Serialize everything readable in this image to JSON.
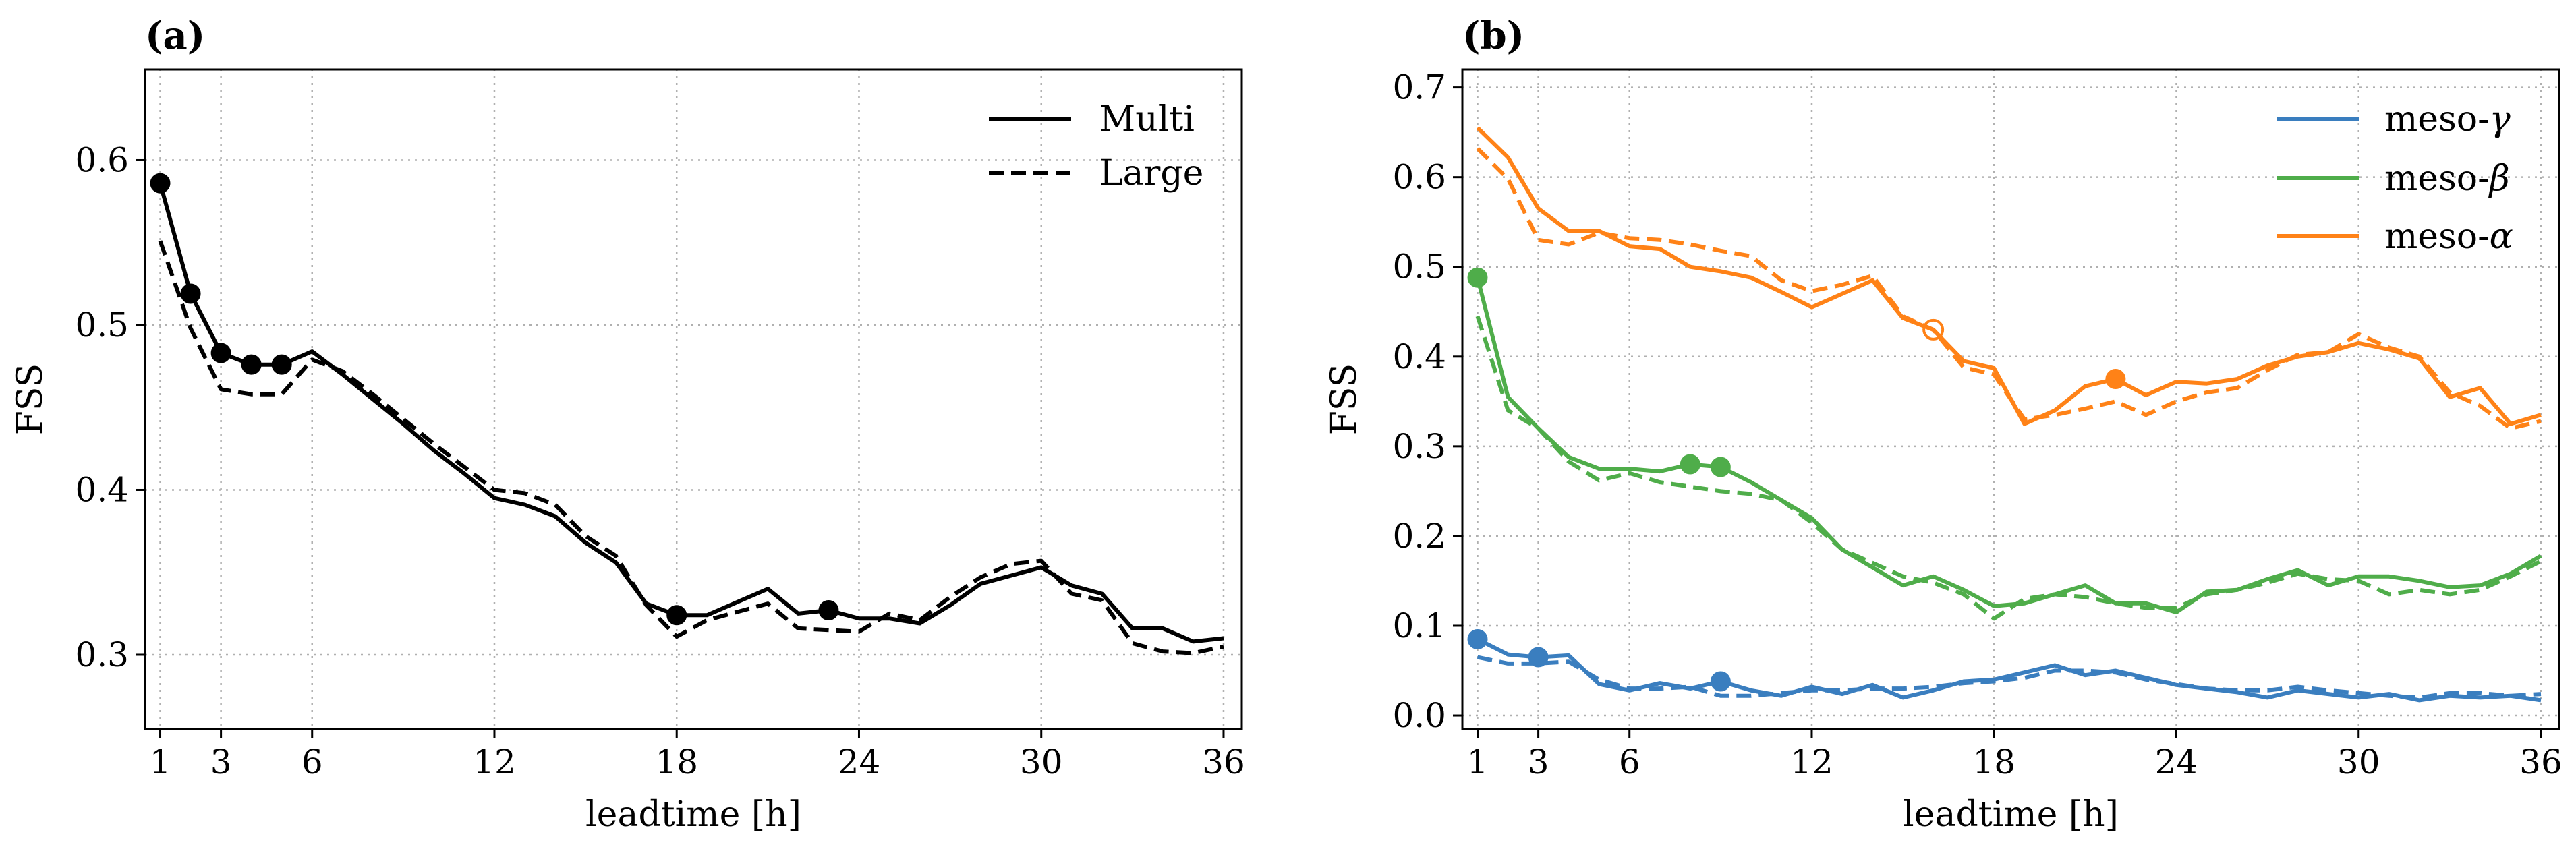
{
  "chart_data": [
    {
      "type": "line",
      "panel_label": "(a)",
      "title": "",
      "xlabel": "leadtime [h]",
      "ylabel": "FSS",
      "xlim": [
        0.5,
        36.6
      ],
      "ylim": [
        0.255,
        0.655
      ],
      "xticks": [
        1,
        3,
        6,
        12,
        18,
        24,
        30,
        36
      ],
      "xticklabels": [
        "1",
        "3",
        "6",
        "12",
        "18",
        "24",
        "30",
        "36"
      ],
      "yticks": [
        0.3,
        0.4,
        0.5,
        0.6
      ],
      "yticklabels": [
        "0.3",
        "0.4",
        "0.5",
        "0.6"
      ],
      "grid": true,
      "legend_position": "top-right",
      "x": [
        1,
        2,
        3,
        4,
        5,
        6,
        7,
        8,
        9,
        10,
        11,
        12,
        13,
        14,
        15,
        16,
        17,
        18,
        19,
        20,
        21,
        22,
        23,
        24,
        25,
        26,
        27,
        28,
        29,
        30,
        31,
        32,
        33,
        34,
        35,
        36
      ],
      "series": [
        {
          "name": "Multi",
          "color": "#000000",
          "dash": "solid",
          "values": [
            0.586,
            0.519,
            0.483,
            0.476,
            0.476,
            0.484,
            0.47,
            0.455,
            0.44,
            0.424,
            0.41,
            0.395,
            0.391,
            0.384,
            0.368,
            0.356,
            0.331,
            0.324,
            0.324,
            0.332,
            0.34,
            0.325,
            0.327,
            0.322,
            0.322,
            0.319,
            0.33,
            0.343,
            0.348,
            0.353,
            0.342,
            0.337,
            0.316,
            0.316,
            0.308,
            0.31
          ],
          "markers_at": [
            1,
            2,
            3,
            4,
            5,
            18,
            23
          ],
          "marker_fill": "filled"
        },
        {
          "name": "Large",
          "color": "#000000",
          "dash": "dashed",
          "values": [
            0.551,
            0.498,
            0.461,
            0.458,
            0.458,
            0.479,
            0.472,
            0.458,
            0.443,
            0.428,
            0.414,
            0.4,
            0.398,
            0.391,
            0.372,
            0.36,
            0.33,
            0.311,
            0.321,
            0.326,
            0.331,
            0.316,
            0.315,
            0.314,
            0.325,
            0.321,
            0.335,
            0.347,
            0.355,
            0.357,
            0.337,
            0.333,
            0.307,
            0.302,
            0.301,
            0.305
          ],
          "markers_at": [],
          "marker_fill": "filled"
        }
      ]
    },
    {
      "type": "line",
      "panel_label": "(b)",
      "title": "",
      "xlabel": "leadtime [h]",
      "ylabel": "FSS",
      "xlim": [
        0.5,
        36.6
      ],
      "ylim": [
        -0.015,
        0.72
      ],
      "xticks": [
        1,
        3,
        6,
        12,
        18,
        24,
        30,
        36
      ],
      "xticklabels": [
        "1",
        "3",
        "6",
        "12",
        "18",
        "24",
        "30",
        "36"
      ],
      "yticks": [
        0.0,
        0.1,
        0.2,
        0.3,
        0.4,
        0.5,
        0.6,
        0.7
      ],
      "yticklabels": [
        "0.0",
        "0.1",
        "0.2",
        "0.3",
        "0.4",
        "0.5",
        "0.6",
        "0.7"
      ],
      "grid": true,
      "legend_position": "top-right",
      "x": [
        1,
        2,
        3,
        4,
        5,
        6,
        7,
        8,
        9,
        10,
        11,
        12,
        13,
        14,
        15,
        16,
        17,
        18,
        19,
        20,
        21,
        22,
        23,
        24,
        25,
        26,
        27,
        28,
        29,
        30,
        31,
        32,
        33,
        34,
        35,
        36
      ],
      "legend_entries": [
        {
          "label": "meso-",
          "greek": "γ",
          "color": "#3a7ebf"
        },
        {
          "label": "meso-",
          "greek": "β",
          "color": "#4fad4a"
        },
        {
          "label": "meso-",
          "greek": "α",
          "color": "#ff8217"
        }
      ],
      "series": [
        {
          "name": "meso-γ Multi",
          "color": "#3a7ebf",
          "dash": "solid",
          "values": [
            0.085,
            0.068,
            0.065,
            0.067,
            0.035,
            0.028,
            0.036,
            0.03,
            0.038,
            0.028,
            0.022,
            0.032,
            0.024,
            0.034,
            0.02,
            0.028,
            0.038,
            0.04,
            0.048,
            0.056,
            0.045,
            0.05,
            0.042,
            0.034,
            0.03,
            0.026,
            0.02,
            0.028,
            0.024,
            0.02,
            0.024,
            0.017,
            0.022,
            0.02,
            0.022,
            0.017
          ],
          "markers_at": [
            1,
            3,
            9
          ],
          "marker_fill": "filled"
        },
        {
          "name": "meso-γ Large",
          "color": "#3a7ebf",
          "dash": "dashed",
          "values": [
            0.065,
            0.058,
            0.058,
            0.06,
            0.04,
            0.03,
            0.03,
            0.032,
            0.022,
            0.022,
            0.025,
            0.028,
            0.028,
            0.03,
            0.03,
            0.032,
            0.036,
            0.038,
            0.042,
            0.05,
            0.05,
            0.048,
            0.04,
            0.035,
            0.03,
            0.028,
            0.028,
            0.032,
            0.028,
            0.025,
            0.022,
            0.02,
            0.025,
            0.025,
            0.022,
            0.024
          ],
          "markers_at": [],
          "marker_fill": "filled"
        },
        {
          "name": "meso-β Multi",
          "color": "#4fad4a",
          "dash": "solid",
          "values": [
            0.488,
            0.355,
            0.32,
            0.288,
            0.275,
            0.275,
            0.272,
            0.28,
            0.277,
            0.26,
            0.24,
            0.22,
            0.185,
            0.165,
            0.145,
            0.155,
            0.14,
            0.122,
            0.125,
            0.135,
            0.145,
            0.125,
            0.125,
            0.115,
            0.138,
            0.14,
            0.152,
            0.162,
            0.145,
            0.155,
            0.155,
            0.15,
            0.143,
            0.145,
            0.158,
            0.178
          ],
          "markers_at": [
            1,
            8,
            9
          ],
          "marker_fill": "filled"
        },
        {
          "name": "meso-β Large",
          "color": "#4fad4a",
          "dash": "dashed",
          "values": [
            0.445,
            0.34,
            0.32,
            0.283,
            0.262,
            0.27,
            0.26,
            0.255,
            0.25,
            0.247,
            0.24,
            0.215,
            0.185,
            0.17,
            0.155,
            0.148,
            0.135,
            0.108,
            0.13,
            0.135,
            0.132,
            0.125,
            0.12,
            0.12,
            0.135,
            0.14,
            0.148,
            0.158,
            0.152,
            0.15,
            0.135,
            0.14,
            0.135,
            0.14,
            0.155,
            0.172
          ],
          "markers_at": [],
          "marker_fill": "filled"
        },
        {
          "name": "meso-α Multi",
          "color": "#ff8217",
          "dash": "solid",
          "values": [
            0.655,
            0.622,
            0.565,
            0.54,
            0.54,
            0.523,
            0.52,
            0.5,
            0.495,
            0.488,
            0.472,
            0.455,
            0.47,
            0.485,
            0.443,
            0.43,
            0.395,
            0.387,
            0.325,
            0.34,
            0.367,
            0.375,
            0.357,
            0.372,
            0.37,
            0.375,
            0.39,
            0.4,
            0.405,
            0.415,
            0.408,
            0.398,
            0.355,
            0.365,
            0.325,
            0.335
          ],
          "markers_at": [
            22
          ],
          "marker_fill": "filled"
        },
        {
          "name": "meso-α Large",
          "color": "#ff8217",
          "dash": "dashed",
          "values": [
            0.632,
            0.598,
            0.53,
            0.525,
            0.538,
            0.532,
            0.53,
            0.525,
            0.518,
            0.512,
            0.485,
            0.473,
            0.48,
            0.49,
            0.445,
            0.43,
            0.388,
            0.38,
            0.33,
            0.335,
            0.342,
            0.35,
            0.335,
            0.35,
            0.36,
            0.365,
            0.385,
            0.402,
            0.405,
            0.425,
            0.41,
            0.4,
            0.36,
            0.345,
            0.32,
            0.328
          ],
          "markers_at": [
            16
          ],
          "marker_fill": "open"
        }
      ]
    }
  ]
}
